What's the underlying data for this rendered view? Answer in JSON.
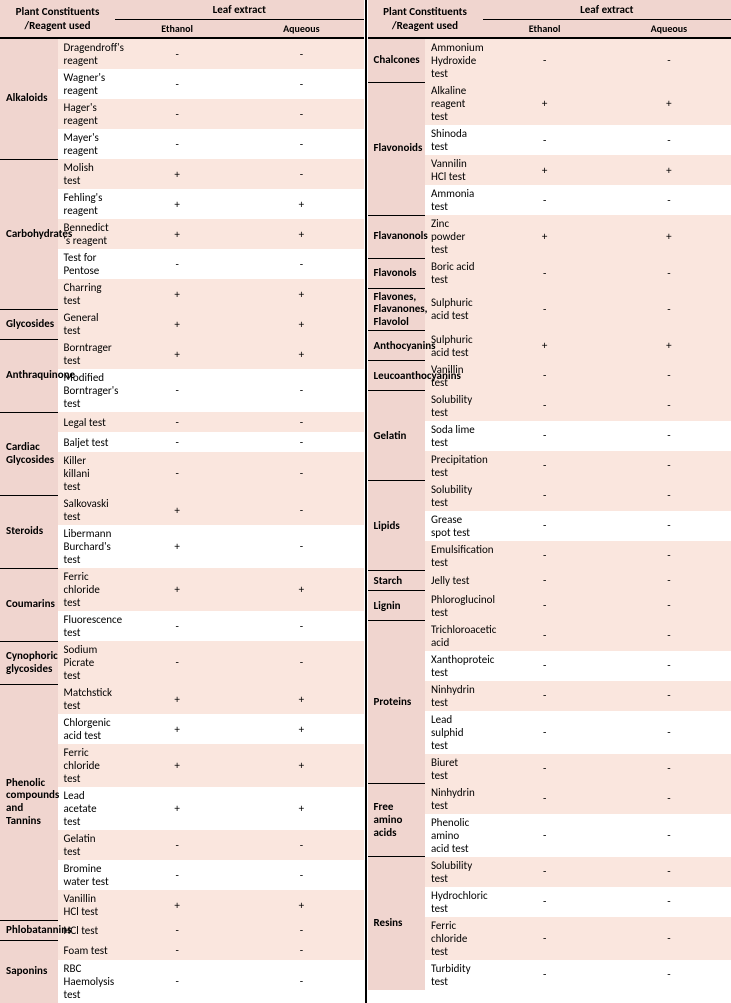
{
  "colors": {
    "header_bg": "#f0d5cf",
    "stripe_bg": "#fae6de",
    "border": "#000000",
    "text": "#000000"
  },
  "headers": {
    "constituents_line1": "Plant Constituents",
    "constituents_line2": "/Reagent used",
    "leaf": "Leaf extract",
    "ethanol": "Ethanol",
    "aqueous": "Aqueous"
  },
  "left": [
    {
      "constituent": "Alkaloids",
      "rows": [
        {
          "reagent": "Dragendroff's reagent",
          "eth": "-",
          "aq": "-"
        },
        {
          "reagent": "Wagner's reagent",
          "eth": "-",
          "aq": "-"
        },
        {
          "reagent": "Hager's reagent",
          "eth": "-",
          "aq": "-"
        },
        {
          "reagent": "Mayer's reagent",
          "eth": "-",
          "aq": "-"
        }
      ]
    },
    {
      "constituent": "Carbohydrates",
      "rows": [
        {
          "reagent": "Molish test",
          "eth": "+",
          "aq": "-"
        },
        {
          "reagent": "Fehling's reagent",
          "eth": "+",
          "aq": "+"
        },
        {
          "reagent": "Bennedict 's reagent",
          "eth": "+",
          "aq": "+"
        },
        {
          "reagent": "Test for Pentose",
          "eth": "-",
          "aq": "-"
        },
        {
          "reagent": "Charring test",
          "eth": "+",
          "aq": "+"
        }
      ]
    },
    {
      "constituent": "Glycosides",
      "rows": [
        {
          "reagent": "General test",
          "eth": "+",
          "aq": "+"
        }
      ]
    },
    {
      "constituent": "Anthraquinone",
      "rows": [
        {
          "reagent": "Borntrager test",
          "eth": "+",
          "aq": "+"
        },
        {
          "reagent": "Modified Borntrager's test",
          "eth": "-",
          "aq": "-"
        }
      ]
    },
    {
      "constituent": "Cardiac Glycosides",
      "rows": [
        {
          "reagent": "Legal test",
          "eth": "-",
          "aq": "-"
        },
        {
          "reagent": "Baljet test",
          "eth": "-",
          "aq": "-"
        },
        {
          "reagent": "Killer killani test",
          "eth": "-",
          "aq": "-"
        }
      ]
    },
    {
      "constituent": "Steroids",
      "rows": [
        {
          "reagent": "Salkovaski test",
          "eth": "+",
          "aq": "-"
        },
        {
          "reagent": "Libermann Burchard's test",
          "eth": "+",
          "aq": "-"
        }
      ]
    },
    {
      "constituent": "Coumarins",
      "rows": [
        {
          "reagent": "Ferric chloride test",
          "eth": "+",
          "aq": "+"
        },
        {
          "reagent": "Fluorescence test",
          "eth": "-",
          "aq": "-"
        }
      ]
    },
    {
      "constituent": "Cynophoric glycosides",
      "rows": [
        {
          "reagent": "Sodium Picrate test",
          "eth": "-",
          "aq": "-"
        }
      ]
    },
    {
      "constituent": "Phenolic compounds and Tannins",
      "rows": [
        {
          "reagent": "Matchstick test",
          "eth": "+",
          "aq": "+"
        },
        {
          "reagent": "Chlorgenic acid test",
          "eth": "+",
          "aq": "+"
        },
        {
          "reagent": "Ferric chloride test",
          "eth": "+",
          "aq": "+"
        },
        {
          "reagent": "Lead acetate test",
          "eth": "+",
          "aq": "+"
        },
        {
          "reagent": "Gelatin test",
          "eth": "-",
          "aq": "-"
        },
        {
          "reagent": "Bromine water test",
          "eth": "-",
          "aq": "-"
        },
        {
          "reagent": "Vanillin HCl test",
          "eth": "+",
          "aq": "+"
        }
      ]
    },
    {
      "constituent": "Phlobatannins",
      "rows": [
        {
          "reagent": "HCl test",
          "eth": "-",
          "aq": "-"
        }
      ]
    },
    {
      "constituent": "Saponins",
      "rows": [
        {
          "reagent": "Foam test",
          "eth": "-",
          "aq": "-"
        },
        {
          "reagent": "RBC Haemolysis test",
          "eth": "-",
          "aq": "-"
        }
      ]
    }
  ],
  "right": [
    {
      "constituent": "Chalcones",
      "rows": [
        {
          "reagent": "Ammonium Hydroxide test",
          "eth": "-",
          "aq": "-"
        }
      ]
    },
    {
      "constituent": "Flavonoids",
      "rows": [
        {
          "reagent": "Alkaline reagent test",
          "eth": "+",
          "aq": "+"
        },
        {
          "reagent": "Shinoda test",
          "eth": "-",
          "aq": "-"
        },
        {
          "reagent": "Vannilin HCl test",
          "eth": "+",
          "aq": "+"
        },
        {
          "reagent": "Ammonia test",
          "eth": "-",
          "aq": "-"
        }
      ]
    },
    {
      "constituent": "Flavanonols",
      "rows": [
        {
          "reagent": "Zinc powder test",
          "eth": "+",
          "aq": "+"
        }
      ]
    },
    {
      "constituent": "Flavonols",
      "rows": [
        {
          "reagent": "Boric acid test",
          "eth": "-",
          "aq": "-"
        }
      ]
    },
    {
      "constituent": "Flavones, Flavanones, Flavolol",
      "rows": [
        {
          "reagent": "Sulphuric acid test",
          "eth": "-",
          "aq": "-"
        }
      ]
    },
    {
      "constituent": "Anthocyanins",
      "rows": [
        {
          "reagent": "Sulphuric acid test",
          "eth": "+",
          "aq": "+"
        }
      ]
    },
    {
      "constituent": "Leucoanthocyanins",
      "rows": [
        {
          "reagent": "Vanillin test",
          "eth": "-",
          "aq": "-"
        }
      ]
    },
    {
      "constituent": "Gelatin",
      "rows": [
        {
          "reagent": "Solubility test",
          "eth": "-",
          "aq": "-"
        },
        {
          "reagent": "Soda lime test",
          "eth": "-",
          "aq": "-"
        },
        {
          "reagent": "Precipitation test",
          "eth": "-",
          "aq": "-"
        }
      ]
    },
    {
      "constituent": "Lipids",
      "rows": [
        {
          "reagent": "Solubility test",
          "eth": "-",
          "aq": "-"
        },
        {
          "reagent": "Grease spot test",
          "eth": "-",
          "aq": "-"
        },
        {
          "reagent": "Emulsification test",
          "eth": "-",
          "aq": "-"
        }
      ]
    },
    {
      "constituent": "Starch",
      "rows": [
        {
          "reagent": "Jelly test",
          "eth": "-",
          "aq": "-"
        }
      ]
    },
    {
      "constituent": "Lignin",
      "rows": [
        {
          "reagent": "Phloroglucinol test",
          "eth": "-",
          "aq": "-"
        }
      ]
    },
    {
      "constituent": "Proteins",
      "rows": [
        {
          "reagent": "Trichloroacetic acid",
          "eth": "-",
          "aq": "-"
        },
        {
          "reagent": "Xanthoproteic test",
          "eth": "-",
          "aq": "-"
        },
        {
          "reagent": "Ninhydrin test",
          "eth": "-",
          "aq": "-"
        },
        {
          "reagent": "Lead sulphid test",
          "eth": "-",
          "aq": "-"
        },
        {
          "reagent": "Biuret test",
          "eth": "-",
          "aq": "-"
        }
      ]
    },
    {
      "constituent": "Free amino acids",
      "rows": [
        {
          "reagent": "Ninhydrin test",
          "eth": "-",
          "aq": "-"
        },
        {
          "reagent": "Phenolic amino acid test",
          "eth": "-",
          "aq": "-"
        }
      ]
    },
    {
      "constituent": "Resins",
      "rows": [
        {
          "reagent": "Solubility test",
          "eth": "-",
          "aq": "-"
        },
        {
          "reagent": "Hydrochloric test",
          "eth": "-",
          "aq": "-"
        },
        {
          "reagent": "Ferric chloride test",
          "eth": "-",
          "aq": "-"
        },
        {
          "reagent": "Turbidity test",
          "eth": "-",
          "aq": "-"
        }
      ]
    }
  ]
}
